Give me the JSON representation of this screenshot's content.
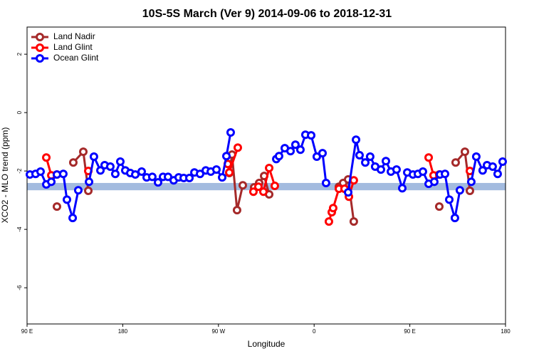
{
  "chart_data": {
    "type": "line",
    "title": "10S-5S March (Ver 9)   2014-09-06 to 2018-12-31",
    "x_label": "Longitude",
    "y_label": "XCO2 - MLO trend (ppm)",
    "xlim": [
      90,
      540
    ],
    "xticks": [
      {
        "value": 90,
        "label": "90 E"
      },
      180,
      {
        "value": 270,
        "label": "90 W"
      },
      {
        "value": 360,
        "label": "0"
      },
      {
        "value": 450,
        "label": "90 E"
      },
      {
        "value": 540,
        "label": "180"
      }
    ],
    "ylim": [
      -7.24,
      2.93
    ],
    "yticks": [
      -6,
      -4,
      -2,
      0,
      2
    ],
    "reference_band": [
      -2.66,
      -2.41
    ],
    "band_color": "#a3bbdf",
    "legend": "top-left",
    "series": [
      {
        "name": "Land Nadir",
        "color": "#a52a2a",
        "x": [
          118.1,
          125,
          133.5,
          142.9,
          147.6,
          200,
          280.2,
          282.8,
          287.5,
          292.9,
          300,
          303.6,
          308.3,
          313.0,
          317.7,
          350,
          383.3,
          387.3,
          392.0,
          397.3,
          420,
          477.7,
          482,
          493.1,
          501.8,
          506.5
        ],
        "values": [
          -3.22,
          null,
          -1.71,
          -1.34,
          -2.68,
          null,
          -2.07,
          -1.44,
          -3.34,
          -2.49,
          null,
          -2.56,
          -2.41,
          -2.17,
          -2.8,
          null,
          -2.54,
          -2.41,
          -2.29,
          -3.73,
          null,
          -3.22,
          null,
          -1.71,
          -1.34,
          -2.68
        ]
      },
      {
        "name": "Land Glint",
        "color": "#ff0000",
        "x": [
          108.1,
          112.8,
          118.1,
          130,
          147.6,
          200,
          278.8,
          280.2,
          288.2,
          298,
          302.9,
          307.6,
          312.3,
          317.7,
          323.0,
          340,
          373.9,
          376.6,
          377.9,
          383.3,
          388.6,
          392.7,
          397.3,
          430,
          467.7,
          472.3,
          477.7,
          490,
          506.5
        ],
        "values": [
          -1.54,
          -2.15,
          -2.12,
          null,
          -2.0,
          null,
          -1.76,
          -2.05,
          -1.2,
          null,
          -2.71,
          -2.54,
          -2.71,
          -1.9,
          -2.51,
          null,
          -3.73,
          -3.41,
          -3.27,
          -2.61,
          -2.61,
          -2.88,
          -2.32,
          null,
          -1.54,
          -2.15,
          -2.12,
          null,
          -2.0
        ]
      },
      {
        "name": "Ocean Glint",
        "color": "#0000ff",
        "x": [
          92.7,
          98.0,
          102.7,
          108.1,
          112.8,
          118.1,
          124.1,
          127.5,
          132.9,
          138.2,
          143,
          148.3,
          152.9,
          159.0,
          163.0,
          168.3,
          173.0,
          177.7,
          182.4,
          187.1,
          191.8,
          197.8,
          202.5,
          207.8,
          213.2,
          217.9,
          222.6,
          227.9,
          232.6,
          237.3,
          242.7,
          247.4,
          252.7,
          258.1,
          262.8,
          268.1,
          273.5,
          277.5,
          281.5,
          300,
          324.4,
          327.0,
          332.4,
          337.8,
          342.4,
          347.1,
          351.8,
          357.2,
          362.5,
          367.9,
          371.2,
          380,
          392.0,
          399.4,
          402.7,
          408.1,
          412.7,
          417.4,
          422.8,
          427.5,
          432.2,
          437.5,
          442.9,
          447.6,
          452.9,
          457.6,
          462.3,
          467.7,
          473.0,
          478.4,
          483.1,
          487.1,
          492.4,
          497.1,
          502,
          507.8,
          512.5,
          518.5,
          522.6,
          527.9,
          532.6,
          537.3
        ],
        "values": [
          -2.12,
          -2.1,
          -2.02,
          -2.46,
          -2.37,
          -2.12,
          -2.1,
          -2.98,
          -3.61,
          -2.66,
          null,
          -2.37,
          -1.51,
          -1.98,
          -1.8,
          -1.85,
          -2.1,
          -1.68,
          -1.98,
          -2.07,
          -2.12,
          -2.02,
          -2.22,
          -2.2,
          -2.39,
          -2.2,
          -2.2,
          -2.32,
          -2.22,
          -2.24,
          -2.24,
          -2.05,
          -2.1,
          -1.98,
          -2.02,
          -1.95,
          -2.22,
          -1.49,
          -0.68,
          null,
          -1.59,
          -1.49,
          -1.22,
          -1.32,
          -1.1,
          -1.27,
          -0.76,
          -0.78,
          -1.51,
          -1.39,
          -2.41,
          null,
          -2.73,
          -0.93,
          -1.46,
          -1.71,
          -1.51,
          -1.85,
          -1.95,
          -1.66,
          -2.02,
          -1.95,
          -2.59,
          -2.05,
          -2.12,
          -2.1,
          -2.02,
          -2.44,
          -2.37,
          -2.12,
          -2.1,
          -2.98,
          -3.61,
          -2.66,
          null,
          -2.37,
          -1.51,
          -1.98,
          -1.8,
          -1.85,
          -2.1,
          -1.68
        ]
      }
    ]
  }
}
